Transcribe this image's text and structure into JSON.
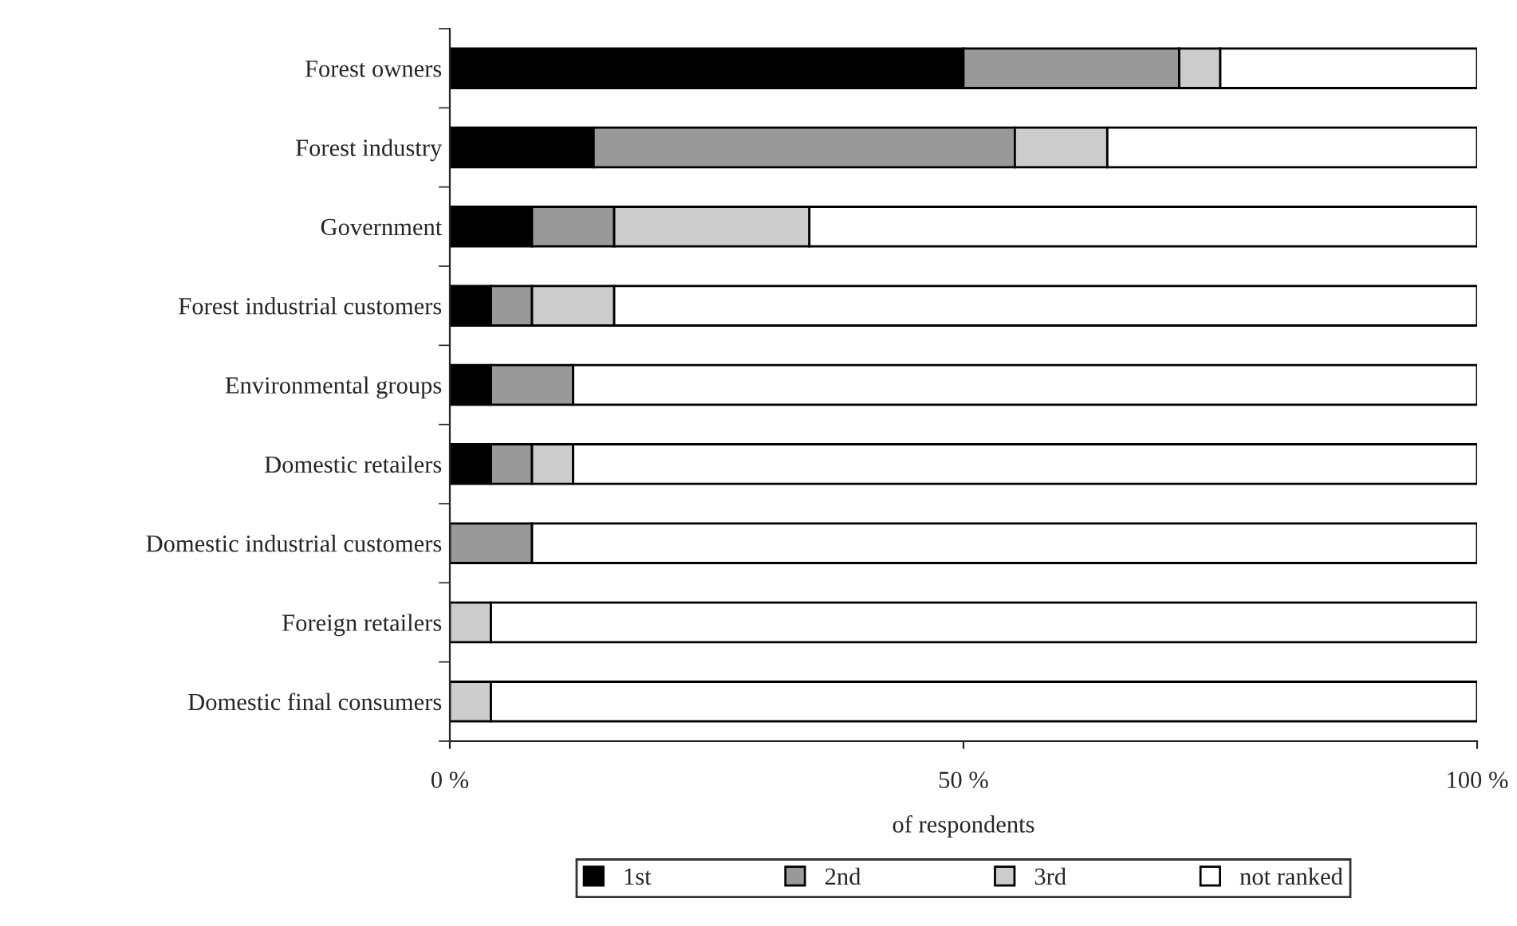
{
  "chart_data": {
    "type": "bar",
    "orientation": "horizontal",
    "stacked": true,
    "categories": [
      "Forest owners",
      "Forest industry",
      "Government",
      "Forest industrial customers",
      "Environmental groups",
      "Domestic retailers",
      "Domestic industrial customers",
      "Foreign retailers",
      "Domestic final consumers"
    ],
    "series": [
      {
        "name": "1st",
        "color": "#000000",
        "values": [
          50,
          14,
          8,
          4,
          4,
          4,
          0,
          0,
          0
        ]
      },
      {
        "name": "2nd",
        "color": "#999999",
        "values": [
          21,
          41,
          8,
          4,
          8,
          4,
          8,
          0,
          0
        ]
      },
      {
        "name": "3rd",
        "color": "#cccccc",
        "values": [
          4,
          9,
          19,
          8,
          0,
          4,
          0,
          4,
          4
        ]
      },
      {
        "name": "not ranked",
        "color": "#ffffff",
        "values": [
          25,
          36,
          65,
          84,
          88,
          88,
          92,
          96,
          96
        ]
      }
    ],
    "xlabel": "of respondents",
    "xlim": [
      0,
      100
    ],
    "xticks": [
      {
        "value": 0,
        "label": "0 %"
      },
      {
        "value": 50,
        "label": "50 %"
      },
      {
        "value": 100,
        "label": "100 %"
      }
    ],
    "grid": false,
    "legend": "bottom"
  }
}
